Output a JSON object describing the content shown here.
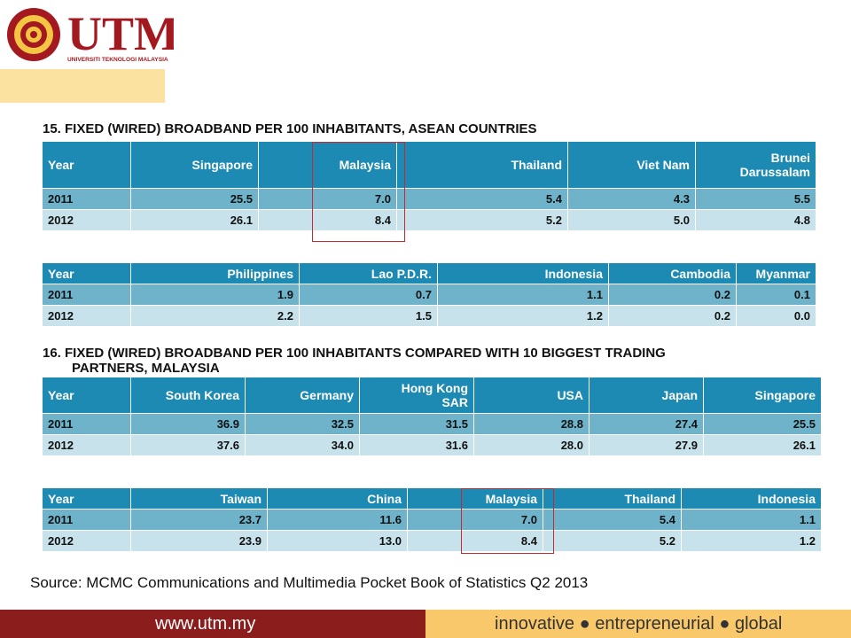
{
  "brand": {
    "name": "UTM",
    "subtitle": "UNIVERSITI TEKNOLOGI MALAYSIA",
    "colors": {
      "maroon": "#8b1d1d",
      "gold": "#f9c86b",
      "header_blue": "#1d8ab3"
    }
  },
  "section15": {
    "title": "15.   FIXED (WIRED) BROADBAND PER 100 INHABITANTS, ASEAN COUNTRIES",
    "table_a": {
      "header": [
        "Year",
        "Singapore",
        "Malaysia",
        "Thailand",
        "Viet Nam",
        "Brunei Darussalam"
      ],
      "rows": [
        [
          "2011",
          "25.5",
          "7.0",
          "5.4",
          "4.3",
          "5.5"
        ],
        [
          "2012",
          "26.1",
          "8.4",
          "5.2",
          "5.0",
          "4.8"
        ]
      ]
    },
    "table_b": {
      "header": [
        "Year",
        "Philippines",
        "Lao P.D.R.",
        "Indonesia",
        "Cambodia",
        "Myanmar"
      ],
      "rows": [
        [
          "2011",
          "1.9",
          "0.7",
          "1.1",
          "0.2",
          "0.1"
        ],
        [
          "2012",
          "2.2",
          "1.5",
          "1.2",
          "0.2",
          "0.0"
        ]
      ]
    }
  },
  "section16": {
    "title_line1": "16.   FIXED (WIRED) BROADBAND PER 100 INHABITANTS COMPARED WITH 10 BIGGEST TRADING",
    "title_line2": "PARTNERS, MALAYSIA",
    "table_a": {
      "header": [
        "Year",
        "South Korea",
        "Germany",
        "Hong Kong SAR",
        "USA",
        "Japan",
        "Singapore"
      ],
      "rows": [
        [
          "2011",
          "36.9",
          "32.5",
          "31.5",
          "28.8",
          "27.4",
          "25.5"
        ],
        [
          "2012",
          "37.6",
          "34.0",
          "31.6",
          "28.0",
          "27.9",
          "26.1"
        ]
      ]
    },
    "table_b": {
      "header": [
        "Year",
        "Taiwan",
        "China",
        "Malaysia",
        "Thailand",
        "Indonesia"
      ],
      "rows": [
        [
          "2011",
          "23.7",
          "11.6",
          "7.0",
          "5.4",
          "1.1"
        ],
        [
          "2012",
          "23.9",
          "13.0",
          "8.4",
          "5.2",
          "1.2"
        ]
      ]
    }
  },
  "source": "Source: MCMC Communications and Multimedia Pocket Book of Statistics Q2 2013",
  "footer": {
    "url": "www.utm.my",
    "tagline": "innovative ● entrepreneurial ● global"
  }
}
